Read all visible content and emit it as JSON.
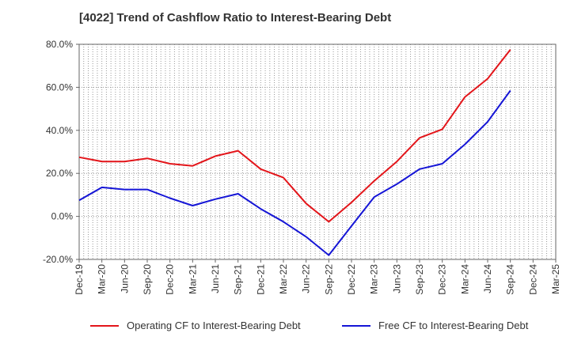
{
  "chart_data": {
    "type": "line",
    "title": "[4022]  Trend of Cashflow Ratio to Interest-Bearing Debt",
    "xlabel": "",
    "ylabel": "",
    "categories": [
      "Dec-19",
      "Mar-20",
      "Jun-20",
      "Sep-20",
      "Dec-20",
      "Mar-21",
      "Jun-21",
      "Sep-21",
      "Dec-21",
      "Mar-22",
      "Jun-22",
      "Sep-22",
      "Dec-22",
      "Mar-23",
      "Jun-23",
      "Sep-23",
      "Dec-23",
      "Mar-24",
      "Jun-24",
      "Sep-24",
      "Dec-24",
      "Mar-25"
    ],
    "yticks": [
      -20,
      0,
      20,
      40,
      60,
      80
    ],
    "yticklabels": [
      "-20.0%",
      "0.0%",
      "20.0%",
      "40.0%",
      "60.0%",
      "80.0%"
    ],
    "ylim": [
      -20,
      80
    ],
    "grid": true,
    "legend_position": "bottom",
    "series": [
      {
        "name": "Operating CF to Interest-Bearing Debt",
        "color": "#e3151a",
        "values": [
          27.5,
          25.5,
          25.5,
          27.0,
          24.5,
          23.5,
          28.0,
          30.5,
          22.0,
          18.0,
          6.0,
          -2.5,
          6.5,
          16.5,
          25.5,
          36.5,
          40.5,
          55.5,
          64.0,
          77.5,
          null,
          null
        ]
      },
      {
        "name": "Free CF to Interest-Bearing Debt",
        "color": "#1515d6",
        "values": [
          7.5,
          13.5,
          12.5,
          12.5,
          8.5,
          5.0,
          8.0,
          10.5,
          3.5,
          -2.5,
          -9.5,
          -18.0,
          -4.5,
          9.0,
          15.0,
          22.0,
          24.5,
          33.5,
          44.0,
          58.5,
          null,
          null
        ]
      }
    ]
  }
}
